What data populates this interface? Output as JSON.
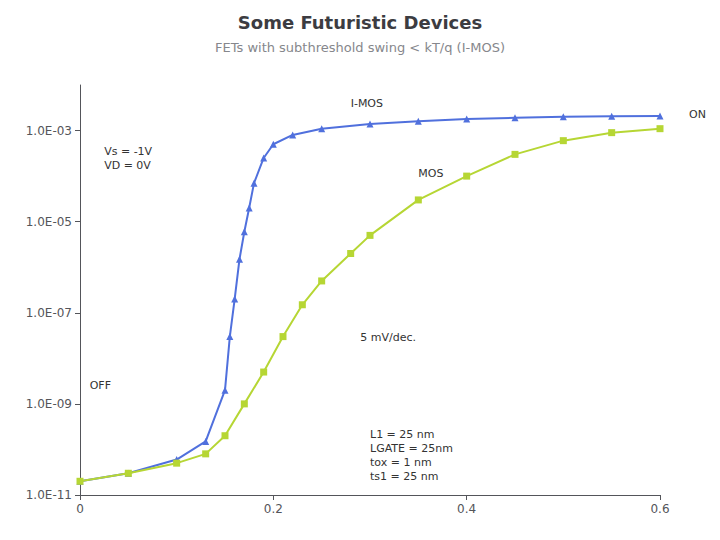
{
  "chart_data": {
    "type": "line",
    "title": "Some Futuristic Devices",
    "subtitle": "FETs with subthreshold swing < kT/q (I-MOS)",
    "log": "y",
    "grid": false,
    "xlim": [
      0,
      0.6
    ],
    "xticks": [
      0,
      0.2,
      0.4,
      0.6
    ],
    "ylim": [
      1e-11,
      0.01
    ],
    "yticks": [
      {
        "value": 1e-11,
        "label": "1.0E-11"
      },
      {
        "value": 1e-09,
        "label": "1.0E-09"
      },
      {
        "value": 1e-07,
        "label": "1.0E-07"
      },
      {
        "value": 1e-05,
        "label": "1.0E-05"
      },
      {
        "value": 0.001,
        "label": "1.0E-03"
      }
    ],
    "series": [
      {
        "marker": "triangle",
        "x": [
          0.0,
          0.05,
          0.1,
          0.13,
          0.15,
          0.155,
          0.16,
          0.165,
          0.17,
          0.175,
          0.18,
          0.19,
          0.2,
          0.22,
          0.25,
          0.3,
          0.35,
          0.4,
          0.45,
          0.5,
          0.55,
          0.6
        ],
        "values": [
          2e-11,
          3e-11,
          6e-11,
          1.5e-10,
          2e-09,
          3e-08,
          2e-07,
          1.5e-06,
          6e-06,
          2e-05,
          7e-05,
          0.00025,
          0.0005,
          0.0008,
          0.0011,
          0.0014,
          0.0016,
          0.0018,
          0.0019,
          0.002,
          0.00205,
          0.0021
        ]
      },
      {
        "marker": "square",
        "x": [
          0.0,
          0.05,
          0.1,
          0.13,
          0.15,
          0.17,
          0.19,
          0.21,
          0.23,
          0.25,
          0.28,
          0.3,
          0.35,
          0.4,
          0.45,
          0.5,
          0.55,
          0.6
        ],
        "values": [
          2e-11,
          3e-11,
          5e-11,
          8e-11,
          2e-10,
          1e-09,
          5e-09,
          3e-08,
          1.5e-07,
          5e-07,
          2e-06,
          5e-06,
          3e-05,
          0.0001,
          0.0003,
          0.0006,
          0.0009,
          0.0011
        ]
      }
    ],
    "annotations": [
      {
        "text": "Vs = -1V\nVD = 0V",
        "x": 0.025,
        "y": 0.0005
      },
      {
        "text": "I-MOS",
        "x": 0.28,
        "y": 0.0028
      },
      {
        "text": "MOS",
        "x": 0.35,
        "y": 8e-05
      },
      {
        "text": "5 mV/dec.",
        "x": 0.29,
        "y": 2e-08
      },
      {
        "text": "L1 = 25 nm\nLGATE = 25nm\ntox = 1 nm\nts1 = 25 nm",
        "x": 0.3,
        "y": 3e-10
      },
      {
        "text": "OFF",
        "x": 0.01,
        "y": 1.8e-09
      },
      {
        "text": "ON",
        "x": 0.63,
        "y": 0.0016
      }
    ]
  }
}
